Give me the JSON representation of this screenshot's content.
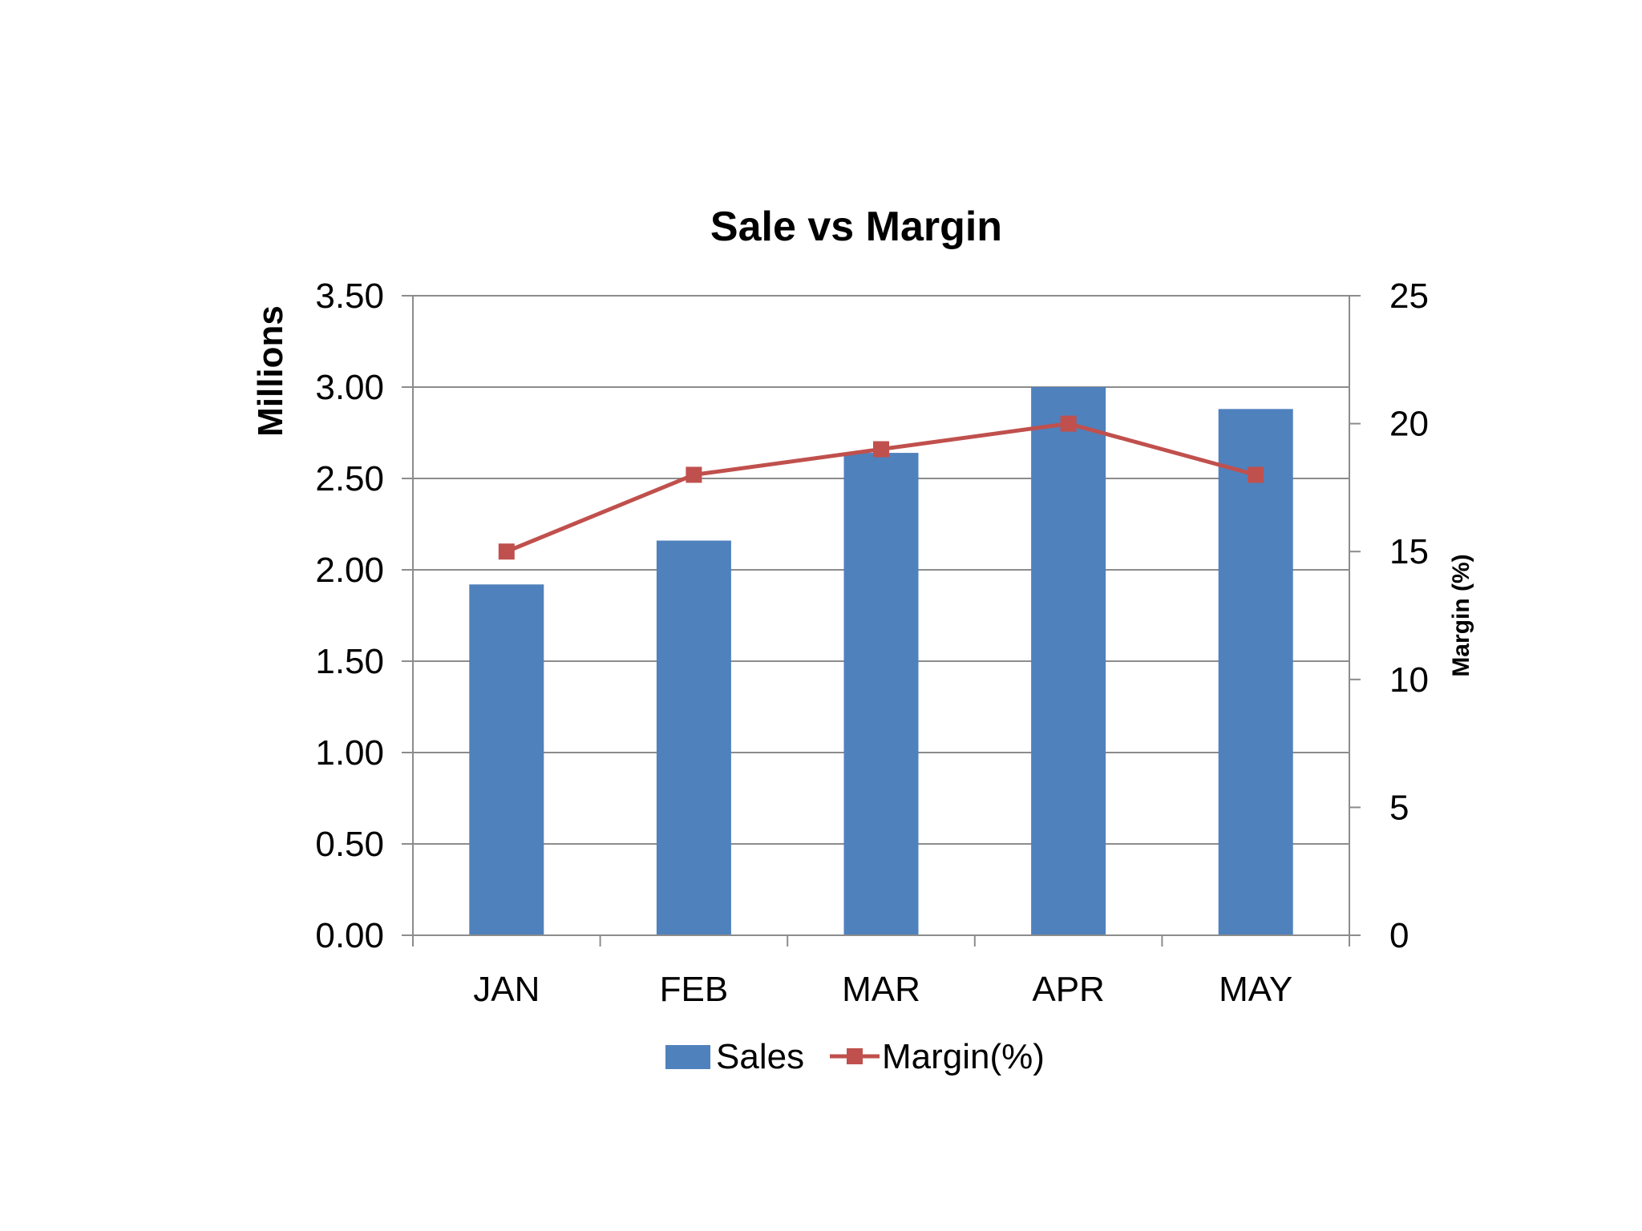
{
  "chart_data": {
    "type": "bar",
    "title": "Sale vs Margin",
    "categories": [
      "JAN",
      "FEB",
      "MAR",
      "APR",
      "MAY"
    ],
    "series": [
      {
        "name": "Sales",
        "type": "bar",
        "axis": "left",
        "color": "#4F81BD",
        "values": [
          1.92,
          2.16,
          2.64,
          3.0,
          2.88
        ]
      },
      {
        "name": "Margin(%)",
        "type": "line",
        "axis": "right",
        "color": "#C0504D",
        "marker": "square",
        "values": [
          15,
          18,
          19,
          20,
          18
        ]
      }
    ],
    "ylabel": "Millions",
    "y2label": "Margin (%)",
    "ylim": [
      0,
      3.5
    ],
    "yticks": [
      "0.00",
      "0.50",
      "1.00",
      "1.50",
      "2.00",
      "2.50",
      "3.00",
      "3.50"
    ],
    "y2lim": [
      0,
      25
    ],
    "y2ticks": [
      "0",
      "5",
      "10",
      "15",
      "20",
      "25"
    ],
    "grid": true,
    "legend": "bottom"
  }
}
